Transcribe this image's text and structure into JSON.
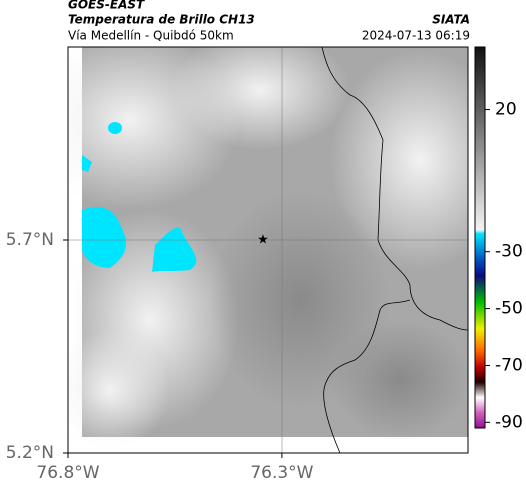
{
  "header": {
    "product": "GOES-EAST",
    "title": "Temperatura de Brillo CH13",
    "source": "SIATA",
    "subtitle": "Vía Medellín - Quibdó 50km",
    "datetime": "2024-07-13 06:19"
  },
  "map": {
    "xlim": [
      -76.8,
      -75.865
    ],
    "ylim": [
      5.2,
      6.153
    ],
    "xticks": [
      {
        "value": -76.8,
        "label": "76.8°W"
      },
      {
        "value": -76.3,
        "label": "76.3°W"
      }
    ],
    "yticks": [
      {
        "value": 5.2,
        "label": "5.2°N"
      },
      {
        "value": 5.7,
        "label": "5.7°N"
      }
    ]
  },
  "colorbar": {
    "clim": [
      42,
      -92
    ],
    "ticks": [
      20,
      -30,
      -50,
      -70,
      -90
    ]
  }
}
